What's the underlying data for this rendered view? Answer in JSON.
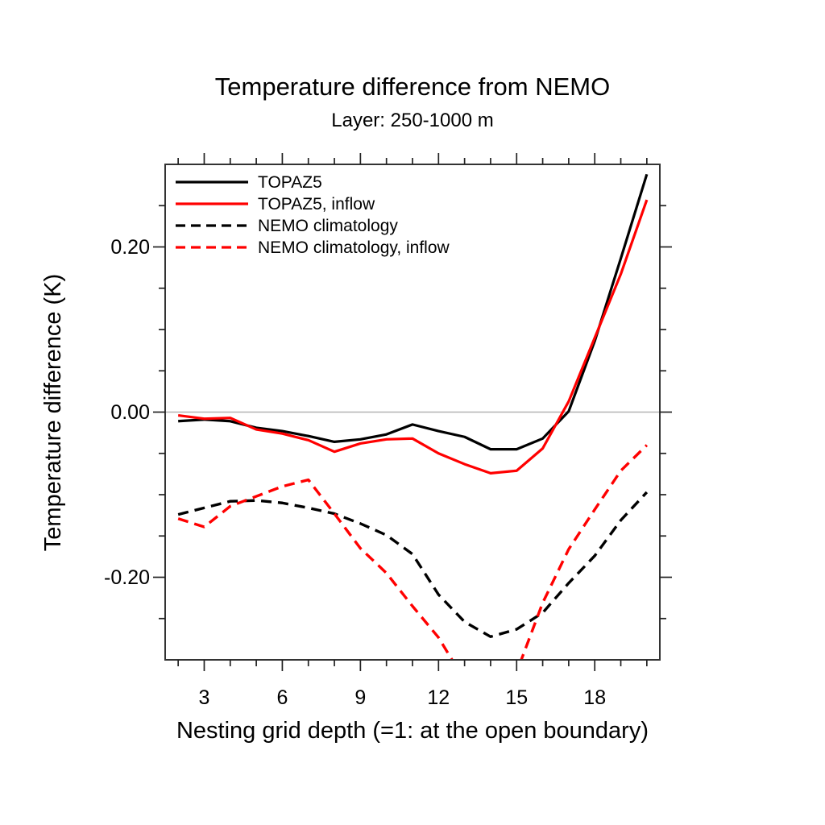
{
  "chart_data": {
    "type": "line",
    "title": "Temperature difference from NEMO",
    "subtitle": "Layer: 250-1000 m",
    "xlabel": "Nesting grid depth (=1: at the open boundary)",
    "ylabel": "Temperature difference (K)",
    "xlim": [
      1.5,
      20.5
    ],
    "ylim": [
      -0.3,
      0.3
    ],
    "grid": false,
    "zero_line": true,
    "zero_line_color": "#b3b3b3",
    "frame_color": "#333333",
    "legend_position": "top-left-inside",
    "xticks_major": [
      3,
      6,
      9,
      12,
      15,
      18
    ],
    "xtick_labels": [
      "3",
      "6",
      "9",
      "12",
      "15",
      "18"
    ],
    "xticks_minor": [
      2,
      4,
      5,
      7,
      8,
      10,
      11,
      13,
      14,
      16,
      17,
      19,
      20
    ],
    "yticks_major": [
      -0.2,
      0.0,
      0.2
    ],
    "ytick_labels": [
      "-0.20",
      "0.00",
      "0.20"
    ],
    "yticks_minor": [
      -0.25,
      -0.15,
      -0.1,
      -0.05,
      0.05,
      0.1,
      0.15,
      0.25
    ],
    "x": [
      2,
      3,
      4,
      5,
      6,
      7,
      8,
      9,
      10,
      11,
      12,
      13,
      14,
      15,
      16,
      17,
      18,
      19,
      20
    ],
    "series": [
      {
        "name": "TOPAZ5",
        "color": "#000000",
        "style": "solid",
        "values": [
          -0.011,
          -0.009,
          -0.011,
          -0.019,
          -0.023,
          -0.029,
          -0.036,
          -0.033,
          -0.027,
          -0.015,
          -0.023,
          -0.03,
          -0.045,
          -0.045,
          -0.032,
          0.001,
          0.086,
          0.186,
          0.288
        ]
      },
      {
        "name": "TOPAZ5, inflow",
        "color": "#ff0000",
        "style": "solid",
        "values": [
          -0.004,
          -0.008,
          -0.007,
          -0.021,
          -0.026,
          -0.034,
          -0.048,
          -0.038,
          -0.033,
          -0.032,
          -0.05,
          -0.063,
          -0.074,
          -0.071,
          -0.044,
          0.013,
          0.09,
          0.167,
          0.257
        ]
      },
      {
        "name": "NEMO climatology",
        "color": "#000000",
        "style": "dashed",
        "values": [
          -0.124,
          -0.116,
          -0.108,
          -0.107,
          -0.11,
          -0.116,
          -0.123,
          -0.135,
          -0.149,
          -0.172,
          -0.221,
          -0.254,
          -0.272,
          -0.263,
          -0.243,
          -0.207,
          -0.174,
          -0.131,
          -0.097
        ]
      },
      {
        "name": "NEMO climatology, inflow",
        "color": "#ff0000",
        "style": "dashed",
        "values": [
          -0.129,
          -0.139,
          -0.114,
          -0.102,
          -0.09,
          -0.082,
          -0.123,
          -0.165,
          -0.195,
          -0.235,
          -0.273,
          -0.325,
          -0.345,
          -0.315,
          -0.231,
          -0.166,
          -0.118,
          -0.071,
          -0.04
        ],
        "note": "curve dips below plot y-minimum (clipped) between x=12.5 and x=15.2"
      }
    ]
  }
}
